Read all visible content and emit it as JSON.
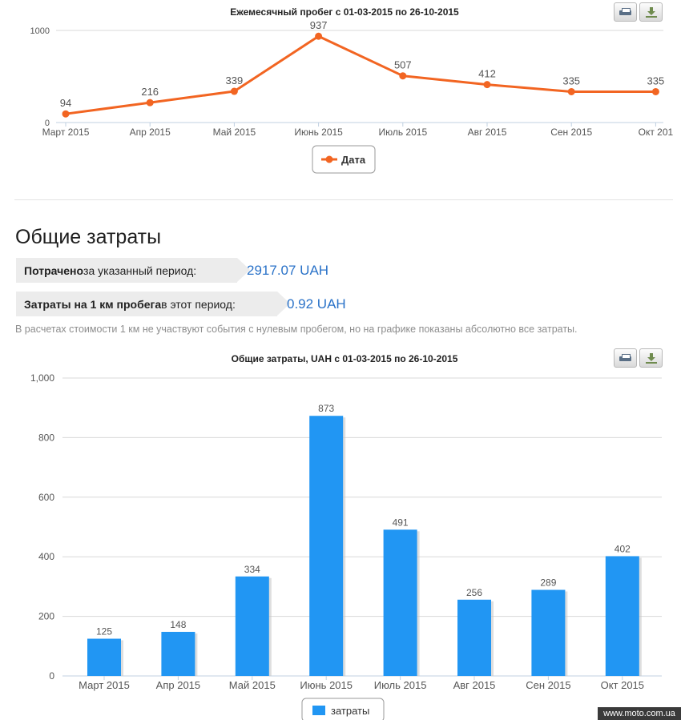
{
  "chart_data": [
    {
      "type": "line",
      "title": "Ежемесячный пробег с 01-03-2015 по 26-10-2015",
      "categories": [
        "Март 2015",
        "Апр 2015",
        "Май 2015",
        "Июнь 2015",
        "Июль 2015",
        "Авг 2015",
        "Сен 2015",
        "Окт 201"
      ],
      "series": [
        {
          "name": "Дата",
          "values": [
            94,
            216,
            339,
            937,
            507,
            412,
            335,
            335
          ]
        }
      ],
      "yticks": [
        "0",
        "1000"
      ],
      "ylim": [
        0,
        1000
      ],
      "grid": true,
      "legend": "bottom-center",
      "color": "#f26522"
    },
    {
      "type": "bar",
      "title": "Общие затраты, UAH с 01-03-2015 по 26-10-2015",
      "categories": [
        "Март 2015",
        "Апр 2015",
        "Май 2015",
        "Июнь 2015",
        "Июль 2015",
        "Авг 2015",
        "Сен 2015",
        "Окт 2015"
      ],
      "series": [
        {
          "name": "затраты",
          "values": [
            125,
            148,
            334,
            873,
            491,
            256,
            289,
            402
          ]
        }
      ],
      "yticks": [
        "0",
        "200",
        "400",
        "600",
        "800",
        "1,000"
      ],
      "ylim": [
        0,
        1000
      ],
      "grid": true,
      "legend": "bottom-center",
      "color": "#2196f3"
    }
  ],
  "summary": {
    "title": "Общие затраты",
    "spent_bold": "Потрачено",
    "spent_rest": " за указанный период:",
    "spent_value": "2917.07 UAH",
    "per_km_bold": "Затраты на 1 км пробега",
    "per_km_rest": " в этот период:",
    "per_km_value": "0.92 UAH",
    "note": "В расчетах стоимости 1 км не участвуют события с нулевым пробегом, но на графике показаны абсолютно все затраты."
  },
  "watermark": "www.moto.com.ua",
  "icons": {
    "print": "printer-icon",
    "download": "download-icon"
  }
}
